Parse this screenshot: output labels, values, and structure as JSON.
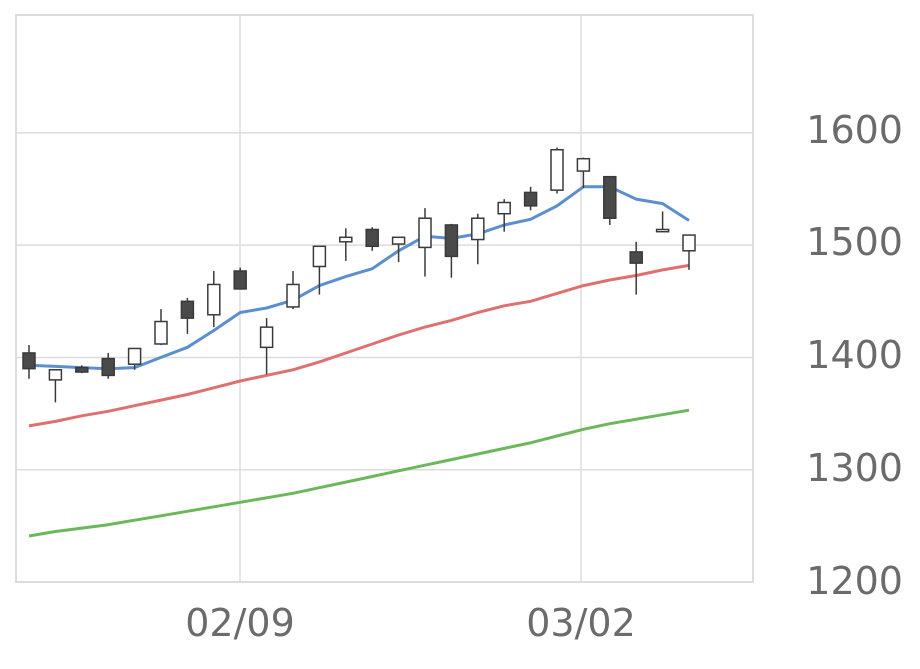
{
  "chart_data": {
    "type": "candlestick",
    "x_tick_labels": [
      "02/09",
      "03/02"
    ],
    "y_tick_labels": [
      "1200",
      "1300",
      "1400",
      "1500",
      "1600"
    ],
    "ylim": [
      1200,
      1705
    ],
    "grid": true,
    "colors": {
      "up_fill": "#ffffff",
      "down_fill": "#4a4a4a",
      "candle_stroke": "#3a3a3a",
      "ma_short": "#5b8fd0",
      "ma_mid": "#e07070",
      "ma_long": "#6ab85a",
      "grid": "#dddddd",
      "tick_text": "#6b6b6b"
    },
    "candles": [
      {
        "o": 1404,
        "h": 1411,
        "l": 1381,
        "c": 1390
      },
      {
        "o": 1380,
        "h": 1388,
        "l": 1360,
        "c": 1389
      },
      {
        "o": 1391,
        "h": 1393,
        "l": 1386,
        "c": 1387
      },
      {
        "o": 1399,
        "h": 1404,
        "l": 1381,
        "c": 1384
      },
      {
        "o": 1394,
        "h": 1408,
        "l": 1389,
        "c": 1408
      },
      {
        "o": 1412,
        "h": 1443,
        "l": 1411,
        "c": 1432
      },
      {
        "o": 1450,
        "h": 1453,
        "l": 1421,
        "c": 1435
      },
      {
        "o": 1438,
        "h": 1477,
        "l": 1427,
        "c": 1465
      },
      {
        "o": 1477,
        "h": 1480,
        "l": 1461,
        "c": 1461
      },
      {
        "o": 1409,
        "h": 1435,
        "l": 1385,
        "c": 1427
      },
      {
        "o": 1445,
        "h": 1477,
        "l": 1443,
        "c": 1465
      },
      {
        "o": 1481,
        "h": 1498,
        "l": 1456,
        "c": 1499
      },
      {
        "o": 1503,
        "h": 1515,
        "l": 1486,
        "c": 1507
      },
      {
        "o": 1514,
        "h": 1516,
        "l": 1495,
        "c": 1499
      },
      {
        "o": 1501,
        "h": 1507,
        "l": 1485,
        "c": 1507
      },
      {
        "o": 1498,
        "h": 1533,
        "l": 1472,
        "c": 1524
      },
      {
        "o": 1518,
        "h": 1519,
        "l": 1471,
        "c": 1490
      },
      {
        "o": 1505,
        "h": 1528,
        "l": 1483,
        "c": 1524
      },
      {
        "o": 1528,
        "h": 1541,
        "l": 1512,
        "c": 1538
      },
      {
        "o": 1547,
        "h": 1552,
        "l": 1531,
        "c": 1535
      },
      {
        "o": 1549,
        "h": 1587,
        "l": 1546,
        "c": 1585
      },
      {
        "o": 1566,
        "h": 1578,
        "l": 1551,
        "c": 1577
      },
      {
        "o": 1561,
        "h": 1561,
        "l": 1518,
        "c": 1524
      },
      {
        "o": 1494,
        "h": 1503,
        "l": 1456,
        "c": 1484
      },
      {
        "o": 1512,
        "h": 1530,
        "l": 1512,
        "c": 1514
      },
      {
        "o": 1495,
        "h": 1509,
        "l": 1478,
        "c": 1509
      }
    ],
    "series": [
      {
        "values": [
          1393,
          1392,
          1391,
          1390,
          1391,
          1400,
          1409,
          1424,
          1440,
          1444,
          1451,
          1464,
          1472,
          1479,
          1495,
          1508,
          1506,
          1510,
          1518,
          1523,
          1535,
          1552,
          1552,
          1541,
          1537,
          1522
        ]
      },
      {
        "values": [
          1339,
          1343,
          1348,
          1352,
          1357,
          1362,
          1367,
          1373,
          1379,
          1384,
          1389,
          1396,
          1404,
          1412,
          1420,
          1427,
          1433,
          1440,
          1446,
          1450,
          1457,
          1464,
          1469,
          1473,
          1478,
          1482
        ]
      },
      {
        "values": [
          1241,
          1245,
          1248,
          1251,
          1255,
          1259,
          1263,
          1267,
          1271,
          1275,
          1279,
          1284,
          1289,
          1294,
          1299,
          1304,
          1309,
          1314,
          1319,
          1324,
          1330,
          1336,
          1341,
          1345,
          1349,
          1353
        ]
      }
    ]
  }
}
